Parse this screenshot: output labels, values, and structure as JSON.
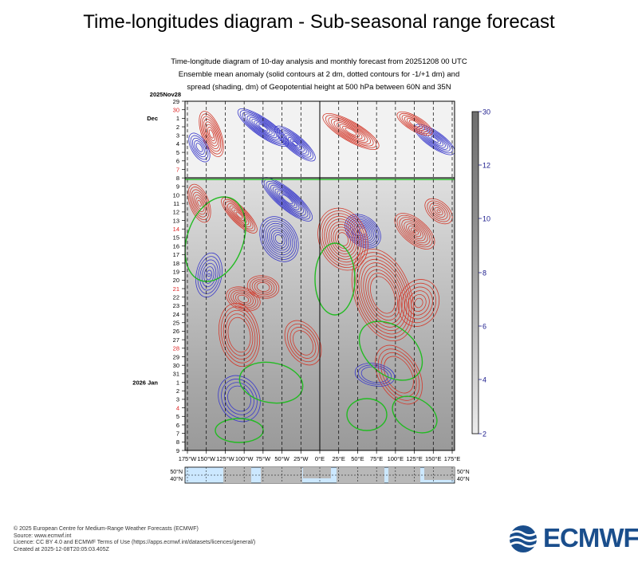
{
  "page": {
    "title": "Time-longitudes diagram - Sub-seasonal range forecast",
    "subtitle_lines": [
      "Time-longitude diagram of 10-day analysis and monthly forecast from 20251208 00 UTC",
      "Ensemble mean anomaly (solid contours at 2 dm, dotted contours for -1/+1 dm) and",
      "spread (shading, dm) of Geopotential height at 500 hPa between 60N and 35N"
    ],
    "footer_lines": [
      "© 2025 European Centre for Medium-Range Weather Forecasts (ECMWF)",
      "Source: www.ecmwf.int",
      "Licence: CC BY 4.0 and ECMWF Terms of Use (https://apps.ecmwf.int/datasets/licences/general/)",
      "Created at 2025-12-08T20:05:03.405Z"
    ],
    "logo_text": "ECMWF",
    "colors": {
      "positive_contour": "#d33a2c",
      "negative_contour": "#3a3acb",
      "zero_contour": "#22bb22",
      "forecast_start_line": "#000000",
      "weekend_label": "#dd2222",
      "colorbar_label": "#1a1a8c",
      "ocean": "#cce8ff",
      "land": "#b8b8b8"
    }
  },
  "chart_data": {
    "type": "heatmap",
    "x_tick_labels": [
      "175°W",
      "150°W",
      "125°W",
      "100°W",
      "75°W",
      "50°W",
      "25°W",
      "0°E",
      "25°E",
      "50°E",
      "75°E",
      "100°E",
      "125°E",
      "150°E",
      "175°E"
    ],
    "y_tick_labels": [
      {
        "label": "29",
        "weekend": false
      },
      {
        "label": "30",
        "weekend": true
      },
      {
        "label": "Dec 1",
        "weekend": false
      },
      {
        "label": "2",
        "weekend": false
      },
      {
        "label": "3",
        "weekend": false
      },
      {
        "label": "4",
        "weekend": false
      },
      {
        "label": "5",
        "weekend": false
      },
      {
        "label": "6",
        "weekend": false
      },
      {
        "label": "7",
        "weekend": true
      },
      {
        "label": "8",
        "weekend": false
      },
      {
        "label": "9",
        "weekend": false
      },
      {
        "label": "10",
        "weekend": false
      },
      {
        "label": "11",
        "weekend": false
      },
      {
        "label": "12",
        "weekend": false
      },
      {
        "label": "13",
        "weekend": false
      },
      {
        "label": "14",
        "weekend": true
      },
      {
        "label": "15",
        "weekend": false
      },
      {
        "label": "16",
        "weekend": false
      },
      {
        "label": "17",
        "weekend": false
      },
      {
        "label": "18",
        "weekend": false
      },
      {
        "label": "19",
        "weekend": false
      },
      {
        "label": "20",
        "weekend": false
      },
      {
        "label": "21",
        "weekend": true
      },
      {
        "label": "22",
        "weekend": false
      },
      {
        "label": "23",
        "weekend": false
      },
      {
        "label": "24",
        "weekend": false
      },
      {
        "label": "25",
        "weekend": false
      },
      {
        "label": "26",
        "weekend": false
      },
      {
        "label": "27",
        "weekend": false
      },
      {
        "label": "28",
        "weekend": true
      },
      {
        "label": "29",
        "weekend": false
      },
      {
        "label": "30",
        "weekend": false
      },
      {
        "label": "31",
        "weekend": false
      },
      {
        "label": "2026 Jan 1",
        "weekend": false
      },
      {
        "label": "2",
        "weekend": false
      },
      {
        "label": "3",
        "weekend": false
      },
      {
        "label": "4",
        "weekend": true
      },
      {
        "label": "5",
        "weekend": false
      },
      {
        "label": "6",
        "weekend": false
      },
      {
        "label": "7",
        "weekend": false
      },
      {
        "label": "8",
        "weekend": false
      },
      {
        "label": "9",
        "weekend": false
      }
    ],
    "year_month_label": "2025Nov28",
    "forecast_start_label": "8",
    "colorbar": {
      "ticks": [
        "2",
        "4",
        "6",
        "8",
        "10",
        "12",
        "30"
      ],
      "range": [
        2,
        30
      ]
    },
    "map_strip_lat_labels": [
      "50°N",
      "40°N"
    ],
    "spread_gradient_note_none": ""
  }
}
